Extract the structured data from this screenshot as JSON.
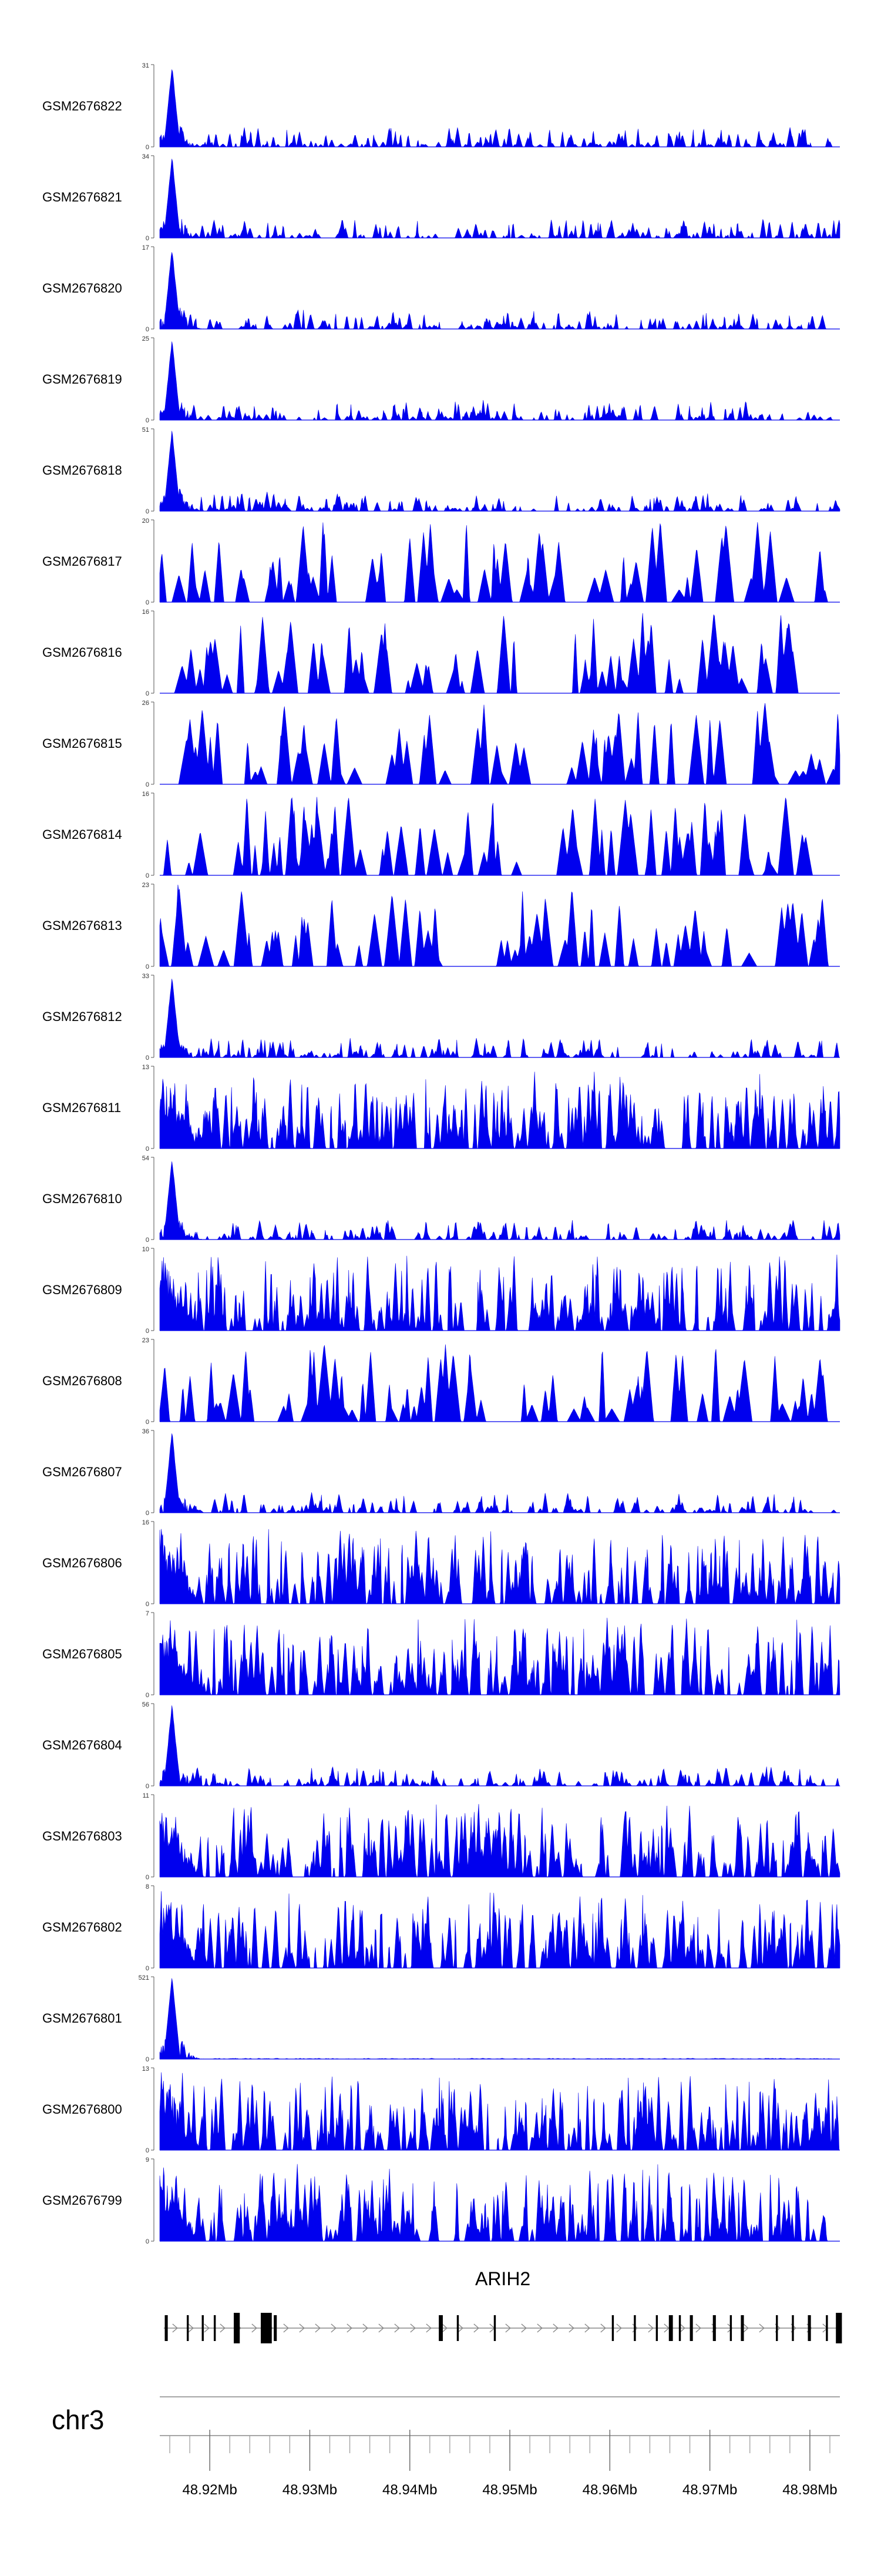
{
  "chart_data": {
    "type": "area",
    "colors": {
      "signal": "#0000ee",
      "gene": "#000000",
      "axis": "#555555"
    },
    "tracks": [
      {
        "name": "GSM2676822",
        "ymax": 31,
        "ymin": 0,
        "profile": "early-peak"
      },
      {
        "name": "GSM2676821",
        "ymax": 34,
        "ymin": 0,
        "profile": "early-peak"
      },
      {
        "name": "GSM2676820",
        "ymax": 17,
        "ymin": 0,
        "profile": "early-peak"
      },
      {
        "name": "GSM2676819",
        "ymax": 25,
        "ymin": 0,
        "profile": "early-peak"
      },
      {
        "name": "GSM2676818",
        "ymax": 51,
        "ymin": 0,
        "profile": "early-peak"
      },
      {
        "name": "GSM2676817",
        "ymax": 20,
        "ymin": 0,
        "profile": "sparse"
      },
      {
        "name": "GSM2676816",
        "ymax": 16,
        "ymin": 0,
        "profile": "sparse"
      },
      {
        "name": "GSM2676815",
        "ymax": 26,
        "ymin": 0,
        "profile": "sparse"
      },
      {
        "name": "GSM2676814",
        "ymax": 16,
        "ymin": 0,
        "profile": "sparse"
      },
      {
        "name": "GSM2676813",
        "ymax": 23,
        "ymin": 0,
        "profile": "sparse"
      },
      {
        "name": "GSM2676812",
        "ymax": 33,
        "ymin": 0,
        "profile": "early-peak"
      },
      {
        "name": "GSM2676811",
        "ymax": 13,
        "ymin": 0,
        "profile": "dense"
      },
      {
        "name": "GSM2676810",
        "ymax": 54,
        "ymin": 0,
        "profile": "early-peak"
      },
      {
        "name": "GSM2676809",
        "ymax": 10,
        "ymin": 0,
        "profile": "dense"
      },
      {
        "name": "GSM2676808",
        "ymax": 23,
        "ymin": 0,
        "profile": "sparse"
      },
      {
        "name": "GSM2676807",
        "ymax": 36,
        "ymin": 0,
        "profile": "early-peak"
      },
      {
        "name": "GSM2676806",
        "ymax": 16,
        "ymin": 0,
        "profile": "dense"
      },
      {
        "name": "GSM2676805",
        "ymax": 7,
        "ymin": 0,
        "profile": "dense"
      },
      {
        "name": "GSM2676804",
        "ymax": 56,
        "ymin": 0,
        "profile": "early-peak"
      },
      {
        "name": "GSM2676803",
        "ymax": 11,
        "ymin": 0,
        "profile": "dense"
      },
      {
        "name": "GSM2676802",
        "ymax": 8,
        "ymin": 0,
        "profile": "dense"
      },
      {
        "name": "GSM2676801",
        "ymax": 521,
        "ymin": 0,
        "profile": "single-peak"
      },
      {
        "name": "GSM2676800",
        "ymax": 13,
        "ymin": 0,
        "profile": "dense"
      },
      {
        "name": "GSM2676799",
        "ymax": 9,
        "ymin": 0,
        "profile": "dense"
      }
    ],
    "gene": {
      "name": "ARIH2",
      "start": 48.9154,
      "end": 48.9832,
      "exons": [
        {
          "start": 48.9155,
          "end": 48.9158
        },
        {
          "start": 48.9177,
          "end": 48.9179
        },
        {
          "start": 48.9192,
          "end": 48.9194
        },
        {
          "start": 48.9204,
          "end": 48.9206
        },
        {
          "start": 48.9224,
          "end": 48.923
        },
        {
          "start": 48.9251,
          "end": 48.9262
        },
        {
          "start": 48.9264,
          "end": 48.9267
        },
        {
          "start": 48.9429,
          "end": 48.9433
        },
        {
          "start": 48.9447,
          "end": 48.9449
        },
        {
          "start": 48.9484,
          "end": 48.9486
        },
        {
          "start": 48.9602,
          "end": 48.9604
        },
        {
          "start": 48.9624,
          "end": 48.9626
        },
        {
          "start": 48.9646,
          "end": 48.9648
        },
        {
          "start": 48.9659,
          "end": 48.9663
        },
        {
          "start": 48.9669,
          "end": 48.9671
        },
        {
          "start": 48.968,
          "end": 48.9683
        },
        {
          "start": 48.9703,
          "end": 48.9706
        },
        {
          "start": 48.972,
          "end": 48.9722
        },
        {
          "start": 48.9731,
          "end": 48.9734
        },
        {
          "start": 48.9766,
          "end": 48.9768
        },
        {
          "start": 48.9782,
          "end": 48.9784
        },
        {
          "start": 48.9798,
          "end": 48.9801
        },
        {
          "start": 48.9816,
          "end": 48.9818
        },
        {
          "start": 48.9826,
          "end": 48.9832
        }
      ]
    },
    "xaxis": {
      "chromosome": "chr3",
      "xlim": [
        48.915,
        48.983
      ],
      "major_ticks": [
        48.92,
        48.93,
        48.94,
        48.95,
        48.96,
        48.97,
        48.98
      ],
      "tick_labels": [
        "48.92Mb",
        "48.93Mb",
        "48.94Mb",
        "48.95Mb",
        "48.96Mb",
        "48.97Mb",
        "48.98Mb"
      ],
      "minor_step": 0.002
    }
  }
}
